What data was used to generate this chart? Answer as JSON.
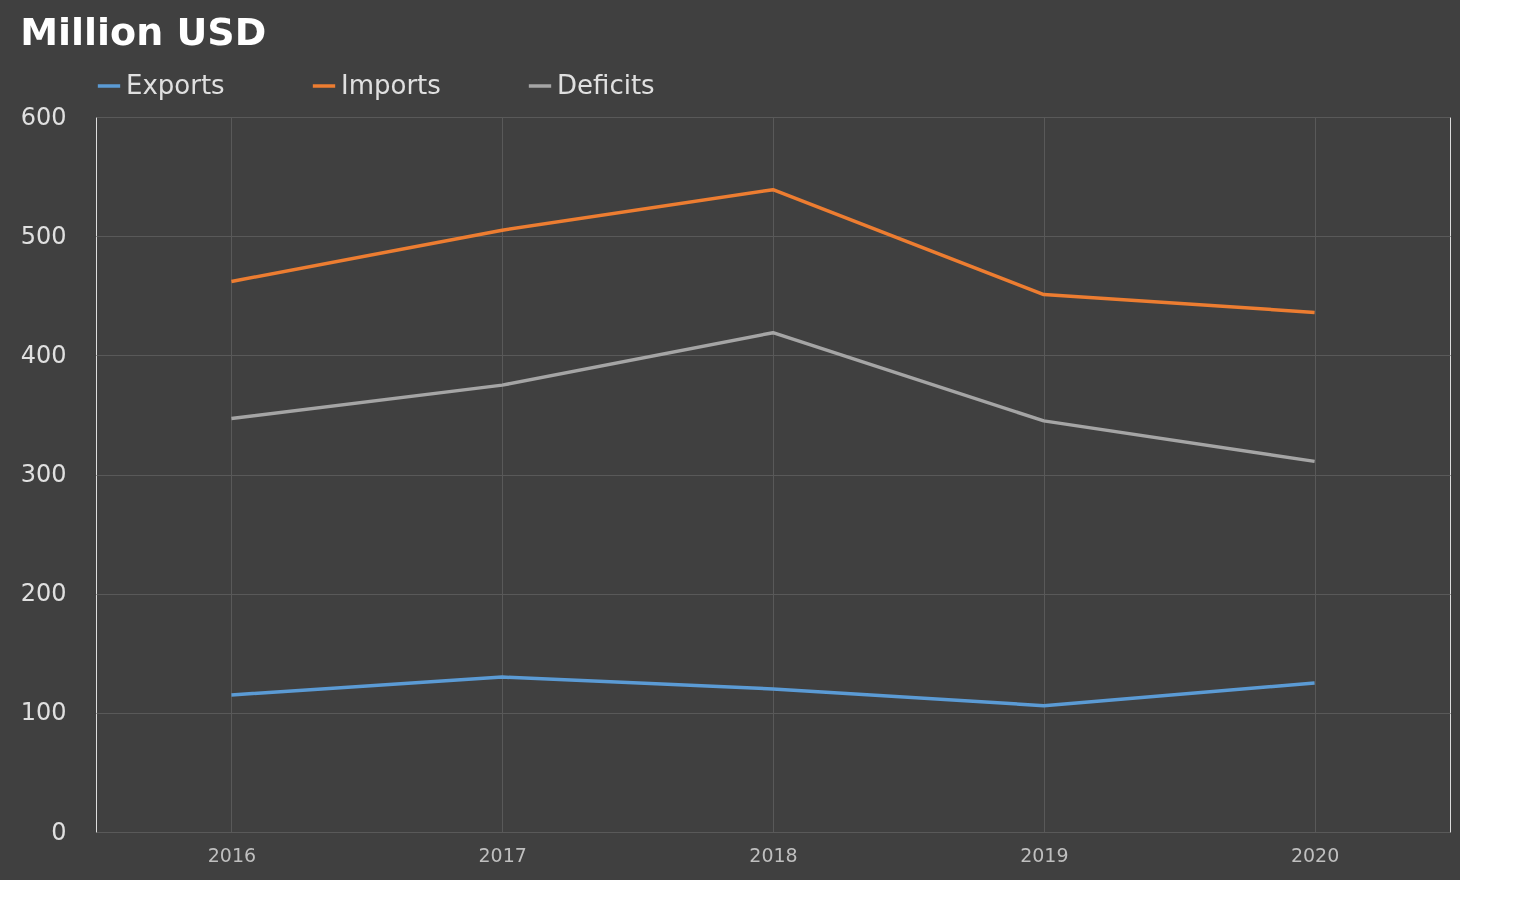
{
  "chart_data": {
    "type": "line",
    "title": "Million USD",
    "categories": [
      "2016",
      "2017",
      "2018",
      "2019",
      "2020"
    ],
    "series": [
      {
        "name": "Exports",
        "color": "#5b9bd5",
        "values": [
          115,
          130,
          120,
          106,
          125
        ]
      },
      {
        "name": "Imports",
        "color": "#ed7d31",
        "values": [
          462,
          505,
          539,
          451,
          436
        ]
      },
      {
        "name": "Deficits",
        "color": "#a5a5a5",
        "values": [
          347,
          375,
          419,
          345,
          311
        ]
      }
    ],
    "ylim": [
      0,
      600
    ],
    "yticks": [
      0,
      100,
      200,
      300,
      400,
      500,
      600
    ],
    "grid": true,
    "legend": "top",
    "marker": "none",
    "line_style": "solid"
  }
}
